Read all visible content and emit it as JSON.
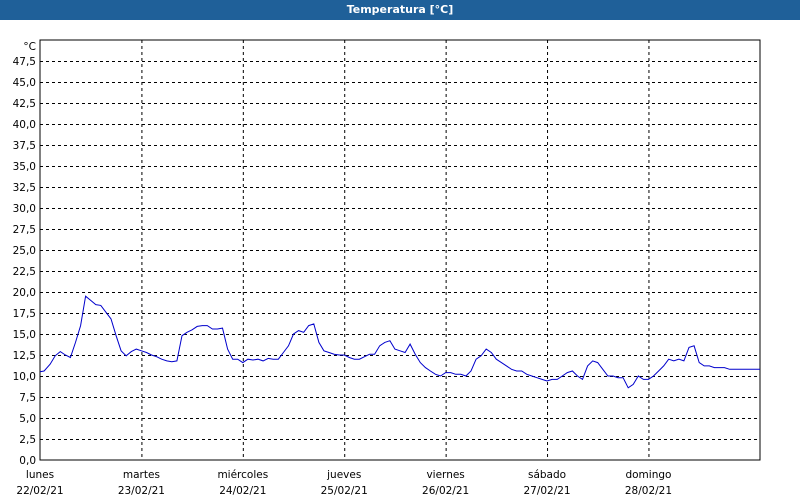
{
  "window": {
    "title": "Temperatura [°C]"
  },
  "colors": {
    "title_bar": "#1f6099",
    "title_text": "#ffffff",
    "series_line": "#0000cc",
    "grid": "#000000",
    "background": "#ffffff"
  },
  "chart_data": {
    "type": "line",
    "title": "Temperatura [°C]",
    "y_unit": "°C",
    "ylim": [
      0,
      50
    ],
    "y_ticks": [
      "0,0",
      "2,5",
      "5,0",
      "7,5",
      "10,0",
      "12,5",
      "15,0",
      "17,5",
      "20,0",
      "22,5",
      "25,0",
      "27,5",
      "30,0",
      "32,5",
      "35,0",
      "37,5",
      "40,0",
      "42,5",
      "45,0",
      "47,5"
    ],
    "x_range_days": [
      0,
      7.1
    ],
    "x_ticks": [
      {
        "day": "lunes",
        "date": "22/02/21"
      },
      {
        "day": "martes",
        "date": "23/02/21"
      },
      {
        "day": "miércoles",
        "date": "24/02/21"
      },
      {
        "day": "jueves",
        "date": "25/02/21"
      },
      {
        "day": "viernes",
        "date": "26/02/21"
      },
      {
        "day": "sábado",
        "date": "27/02/21"
      },
      {
        "day": "domingo",
        "date": "28/02/21"
      }
    ],
    "grid": "dashed",
    "series": [
      {
        "x": [
          0,
          0.04,
          0.1,
          0.15,
          0.2,
          0.25,
          0.3,
          0.35,
          0.4,
          0.45,
          0.5,
          0.55,
          0.6,
          0.65,
          0.7,
          0.75,
          0.8,
          0.85,
          0.9,
          0.95,
          1.0,
          1.05,
          1.1,
          1.15,
          1.2,
          1.25,
          1.3,
          1.35,
          1.4,
          1.45,
          1.5,
          1.55,
          1.6,
          1.65,
          1.7,
          1.75,
          1.8,
          1.85,
          1.9,
          1.95,
          2.0,
          2.05,
          2.1,
          2.15,
          2.2,
          2.25,
          2.3,
          2.35,
          2.4,
          2.45,
          2.5,
          2.55,
          2.6,
          2.65,
          2.7,
          2.75,
          2.8,
          2.85,
          2.9,
          2.95,
          3.0,
          3.05,
          3.1,
          3.15,
          3.2,
          3.25,
          3.3,
          3.35,
          3.4,
          3.45,
          3.5,
          3.55,
          3.6,
          3.65,
          3.7,
          3.75,
          3.8,
          3.85,
          3.9,
          3.95,
          4.0,
          4.05,
          4.1,
          4.15,
          4.2,
          4.25,
          4.3,
          4.35,
          4.4,
          4.45,
          4.5,
          4.55,
          4.6,
          4.65,
          4.7,
          4.75,
          4.8,
          4.85,
          4.9,
          4.95,
          5.0,
          5.05,
          5.1,
          5.15,
          5.2,
          5.25,
          5.3,
          5.35,
          5.4,
          5.45,
          5.5,
          5.55,
          5.6,
          5.65,
          5.7,
          5.75,
          5.8,
          5.85,
          5.9,
          5.95,
          6.0,
          6.05,
          6.1,
          6.15,
          6.2,
          6.25,
          6.3,
          6.35,
          6.4,
          6.45,
          6.5,
          6.55,
          6.6,
          6.65,
          6.7,
          6.75,
          6.8,
          6.85,
          6.9,
          6.95,
          7.0,
          7.05,
          7.1
        ],
        "y": [
          10.5,
          10.6,
          11.4,
          12.4,
          12.9,
          12.5,
          12.2,
          14.0,
          16.0,
          19.5,
          19.0,
          18.5,
          18.4,
          17.6,
          16.8,
          14.8,
          13.0,
          12.4,
          12.9,
          13.2,
          13.0,
          12.8,
          12.5,
          12.3,
          12.0,
          11.8,
          11.7,
          11.8,
          14.8,
          15.2,
          15.5,
          15.9,
          16.0,
          16.0,
          15.6,
          15.6,
          15.7,
          13.2,
          12.0,
          12.0,
          11.6,
          12.0,
          11.9,
          12.0,
          11.8,
          12.1,
          12.0,
          12.0,
          12.8,
          13.6,
          15.0,
          15.4,
          15.2,
          16.0,
          16.2,
          14.0,
          13.0,
          12.8,
          12.6,
          12.5,
          12.5,
          12.2,
          12.0,
          12.0,
          12.3,
          12.6,
          12.6,
          13.6,
          14.0,
          14.2,
          13.2,
          13.0,
          12.8,
          13.8,
          12.6,
          11.6,
          11.0,
          10.6,
          10.2,
          10.0,
          10.4,
          10.4,
          10.2,
          10.2,
          10.0,
          10.6,
          12.0,
          12.4,
          13.2,
          12.8,
          12.0,
          11.6,
          11.2,
          10.8,
          10.6,
          10.6,
          10.2,
          10.0,
          9.8,
          9.6,
          9.4,
          9.6,
          9.6,
          10.0,
          10.4,
          10.6,
          10.0,
          9.6,
          11.2,
          11.8,
          11.6,
          10.8,
          10.0,
          10.0,
          9.8,
          9.8,
          8.6,
          9.0,
          10.0,
          9.6,
          9.6,
          10.0,
          10.6,
          11.2,
          12.0,
          11.8,
          12.0,
          11.8,
          13.4,
          13.6,
          11.6,
          11.2,
          11.2,
          11.0,
          11.0,
          11.0,
          10.8,
          10.8,
          10.8,
          10.8,
          10.8,
          10.8,
          10.8
        ]
      }
    ]
  }
}
